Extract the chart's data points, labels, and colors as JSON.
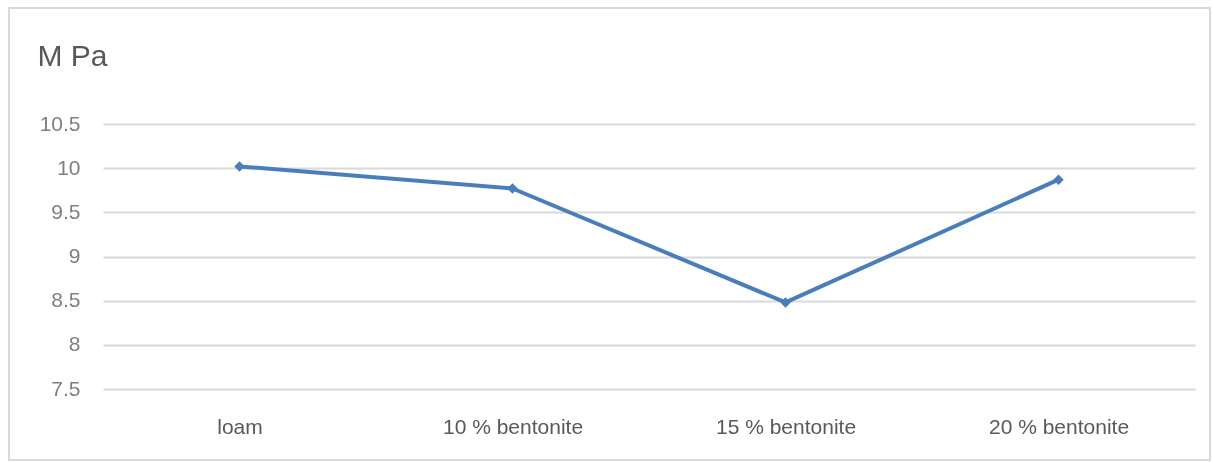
{
  "chart_data": {
    "type": "line",
    "ylabel": "M Pa",
    "categories": [
      "loam",
      "10 % bentonite",
      "15 % bentonite",
      "20 % bentonite"
    ],
    "series": [
      {
        "color": "#4a7ebb",
        "values": [
          10.02,
          9.77,
          8.48,
          9.87
        ]
      }
    ],
    "ylim": [
      7.5,
      10.5
    ],
    "yticks": [
      7.5,
      8,
      8.5,
      9,
      9.5,
      10,
      10.5
    ],
    "grid": "y",
    "marker": "diamond"
  }
}
